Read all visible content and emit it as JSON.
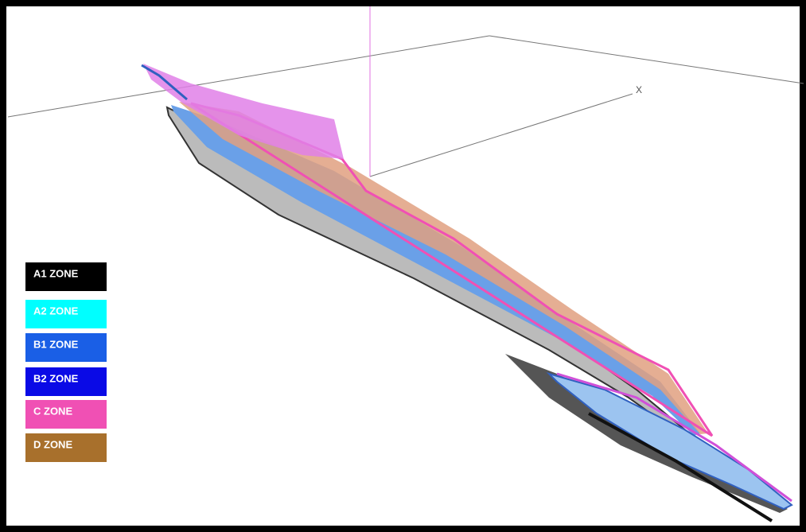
{
  "axis_label": "X",
  "legend": {
    "items": [
      {
        "label": "A1 ZONE",
        "color": "#000000"
      },
      {
        "label": "A2 ZONE",
        "color": "#00ffff"
      },
      {
        "label": "B1 ZONE",
        "color": "#1a5fe6"
      },
      {
        "label": "B2 ZONE",
        "color": "#0a0ae6"
      },
      {
        "label": "C ZONE",
        "color": "#f050b4"
      },
      {
        "label": "D ZONE",
        "color": "#a8702c"
      }
    ]
  }
}
